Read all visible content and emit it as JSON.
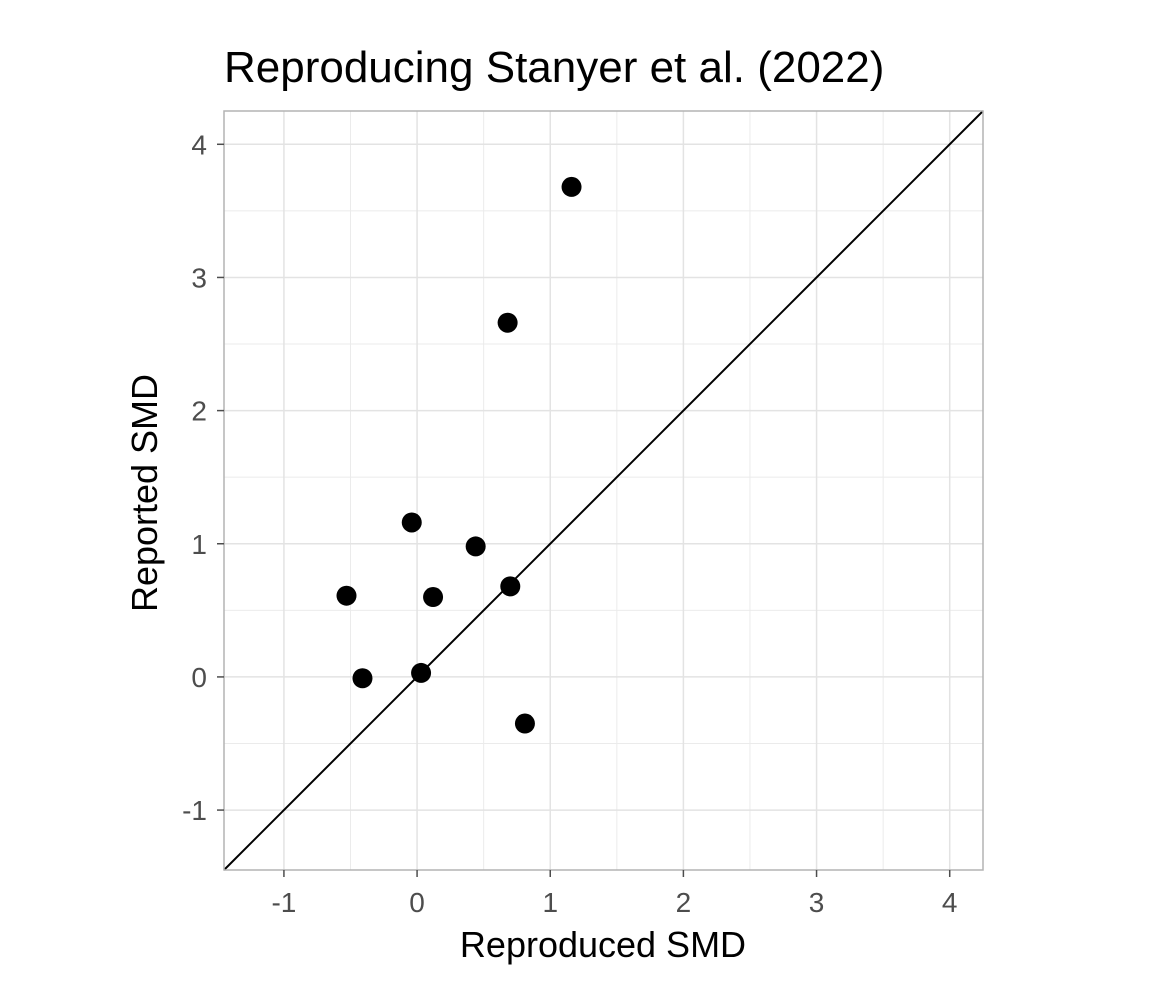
{
  "chart_data": {
    "type": "scatter",
    "title": "Reproducing Stanyer et al. (2022)",
    "xlabel": "Reproduced SMD",
    "ylabel": "Reported SMD",
    "xlim": [
      -1.45,
      4.25
    ],
    "ylim": [
      -1.45,
      4.25
    ],
    "xticks": [
      -1,
      0,
      1,
      2,
      3,
      4
    ],
    "yticks": [
      -1,
      0,
      1,
      2,
      3,
      4
    ],
    "xtick_labels": [
      "-1",
      "0",
      "1",
      "2",
      "3",
      "4"
    ],
    "ytick_labels": [
      "-1",
      "0",
      "1",
      "2",
      "3",
      "4"
    ],
    "minor_grid": [
      -0.5,
      0.5,
      1.5,
      2.5,
      3.5
    ],
    "reference_line": "y = x",
    "grid": true,
    "points": [
      {
        "x": 1.16,
        "y": 3.68
      },
      {
        "x": 0.68,
        "y": 2.66
      },
      {
        "x": -0.04,
        "y": 1.16
      },
      {
        "x": 0.44,
        "y": 0.98
      },
      {
        "x": 0.7,
        "y": 0.68
      },
      {
        "x": -0.53,
        "y": 0.61
      },
      {
        "x": 0.12,
        "y": 0.6
      },
      {
        "x": 0.03,
        "y": 0.03
      },
      {
        "x": -0.41,
        "y": -0.01
      },
      {
        "x": 0.81,
        "y": -0.35
      }
    ],
    "colors": {
      "point": "#000000",
      "grid": "#e3e3e3",
      "panel_border": "#b3b3b3",
      "ticks": "#4d4d4d"
    }
  }
}
